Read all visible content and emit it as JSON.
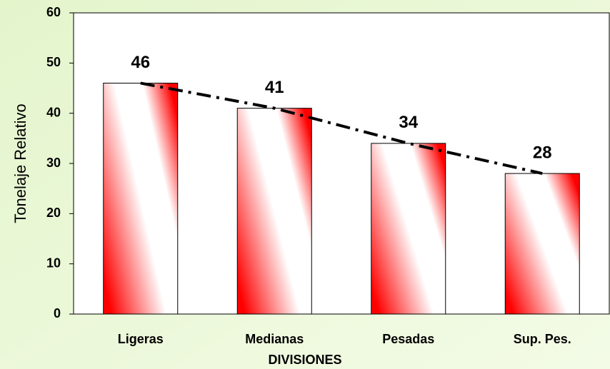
{
  "chart_data": {
    "type": "bar",
    "x_label": "DIVISIONES",
    "y_label": "Tonelaje Relativo",
    "categories": [
      "Ligeras",
      "Medianas",
      "Pesadas",
      "Sup. Pes."
    ],
    "values": [
      46,
      41,
      34,
      28
    ],
    "color": "#ff0000",
    "ylim": [
      0,
      60
    ],
    "yticks": [
      0,
      10,
      20,
      30,
      40,
      50,
      60
    ],
    "trendline": true,
    "data_labels": true
  }
}
